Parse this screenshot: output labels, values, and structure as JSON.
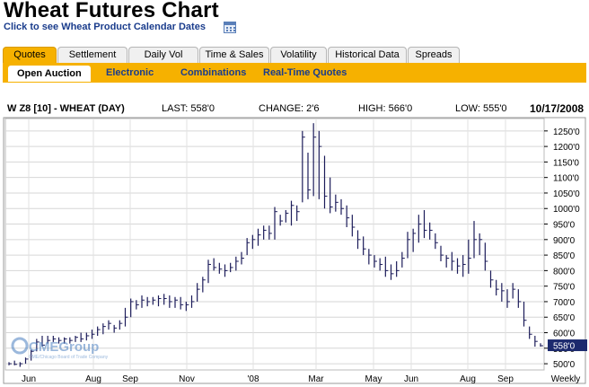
{
  "page": {
    "title": "Wheat Futures Chart",
    "calendar_link": "Click to see Wheat Product Calendar Dates"
  },
  "tabs": [
    "Quotes",
    "Settlement",
    "Daily Vol",
    "Time & Sales",
    "Volatility",
    "Historical Data",
    "Spreads"
  ],
  "active_tab": "Quotes",
  "subtabs": [
    "Open Auction",
    "Electronic",
    "Combinations",
    "Real-Time Quotes"
  ],
  "active_subtab": "Open Auction",
  "info": {
    "symbol": "W Z8 [10] - WHEAT (DAY)",
    "last": "LAST: 558'0",
    "change": "CHANGE: 2'6",
    "high": "HIGH: 566'0",
    "low": "LOW: 555'0",
    "date": "10/17/2008"
  },
  "logo": {
    "text": "CMEGroup",
    "fineprint": "CME/Chicago Board of Trade Company"
  },
  "colors": {
    "orange": "#f6b100",
    "bars": "#1c1c5a",
    "link": "#1a3c8c",
    "last_badge": "#1c2a6e"
  },
  "chart_data": {
    "type": "bar",
    "subtype": "ohlc",
    "y_axis_side": "right",
    "ylim": [
      480,
      1290
    ],
    "yticks": [
      "500'0",
      "550'0",
      "600'0",
      "650'0",
      "700'0",
      "750'0",
      "800'0",
      "850'0",
      "900'0",
      "950'0",
      "1000'0",
      "1050'0",
      "1100'0",
      "1150'0",
      "1200'0",
      "1250'0"
    ],
    "ytick_values": [
      500,
      550,
      600,
      650,
      700,
      750,
      800,
      850,
      900,
      950,
      1000,
      1050,
      1100,
      1150,
      1200,
      1250
    ],
    "last_value_label": "558'0",
    "last_value": 558,
    "xticks": [
      "Jun",
      "Aug",
      "Sep",
      "Nov",
      "'08",
      "Mar",
      "May",
      "Jun",
      "Aug",
      "Sep",
      "Weekly"
    ],
    "grid": true,
    "ohlc": [
      [
        505,
        495,
        500
      ],
      [
        510,
        495,
        498
      ],
      [
        505,
        490,
        500
      ],
      [
        520,
        500,
        515
      ],
      [
        545,
        510,
        540
      ],
      [
        580,
        540,
        570
      ],
      [
        590,
        555,
        560
      ],
      [
        590,
        565,
        575
      ],
      [
        590,
        570,
        580
      ],
      [
        585,
        565,
        575
      ],
      [
        585,
        565,
        580
      ],
      [
        585,
        565,
        575
      ],
      [
        590,
        570,
        585
      ],
      [
        600,
        570,
        580
      ],
      [
        600,
        575,
        590
      ],
      [
        610,
        580,
        595
      ],
      [
        620,
        590,
        610
      ],
      [
        630,
        595,
        620
      ],
      [
        640,
        610,
        630
      ],
      [
        625,
        600,
        615
      ],
      [
        640,
        610,
        630
      ],
      [
        680,
        620,
        650
      ],
      [
        710,
        650,
        700
      ],
      [
        705,
        675,
        690
      ],
      [
        720,
        680,
        705
      ],
      [
        715,
        685,
        700
      ],
      [
        715,
        690,
        705
      ],
      [
        720,
        685,
        710
      ],
      [
        725,
        690,
        710
      ],
      [
        720,
        680,
        700
      ],
      [
        715,
        680,
        705
      ],
      [
        715,
        675,
        690
      ],
      [
        700,
        670,
        690
      ],
      [
        720,
        680,
        700
      ],
      [
        760,
        700,
        740
      ],
      [
        780,
        730,
        770
      ],
      [
        835,
        760,
        820
      ],
      [
        840,
        800,
        810
      ],
      [
        825,
        790,
        805
      ],
      [
        820,
        780,
        800
      ],
      [
        825,
        795,
        810
      ],
      [
        845,
        800,
        830
      ],
      [
        860,
        820,
        840
      ],
      [
        905,
        850,
        890
      ],
      [
        915,
        870,
        900
      ],
      [
        935,
        880,
        915
      ],
      [
        945,
        900,
        930
      ],
      [
        945,
        900,
        920
      ],
      [
        1005,
        900,
        990
      ],
      [
        980,
        945,
        960
      ],
      [
        995,
        955,
        985
      ],
      [
        1025,
        945,
        1010
      ],
      [
        1010,
        960,
        990
      ],
      [
        1250,
        1020,
        1230
      ],
      [
        1180,
        1030,
        1060
      ],
      [
        1275,
        1040,
        1230
      ],
      [
        1250,
        1030,
        1200
      ],
      [
        1170,
        1000,
        1040
      ],
      [
        1100,
        985,
        1005
      ],
      [
        1045,
        990,
        1020
      ],
      [
        1030,
        980,
        1000
      ],
      [
        1010,
        940,
        970
      ],
      [
        980,
        910,
        940
      ],
      [
        930,
        870,
        900
      ],
      [
        910,
        850,
        870
      ],
      [
        870,
        820,
        850
      ],
      [
        850,
        810,
        830
      ],
      [
        840,
        800,
        820
      ],
      [
        845,
        780,
        800
      ],
      [
        820,
        770,
        790
      ],
      [
        830,
        780,
        800
      ],
      [
        860,
        810,
        840
      ],
      [
        925,
        840,
        900
      ],
      [
        935,
        860,
        920
      ],
      [
        980,
        890,
        950
      ],
      [
        995,
        905,
        930
      ],
      [
        955,
        900,
        930
      ],
      [
        920,
        870,
        890
      ],
      [
        880,
        830,
        850
      ],
      [
        850,
        810,
        840
      ],
      [
        860,
        800,
        830
      ],
      [
        840,
        790,
        815
      ],
      [
        850,
        780,
        820
      ],
      [
        900,
        790,
        840
      ],
      [
        960,
        840,
        900
      ],
      [
        920,
        850,
        900
      ],
      [
        890,
        800,
        830
      ],
      [
        800,
        745,
        770
      ],
      [
        770,
        720,
        740
      ],
      [
        760,
        700,
        735
      ],
      [
        740,
        680,
        700
      ],
      [
        760,
        710,
        740
      ],
      [
        740,
        680,
        700
      ],
      [
        700,
        620,
        640
      ],
      [
        620,
        580,
        595
      ],
      [
        590,
        555,
        572
      ],
      [
        566,
        555,
        558
      ]
    ]
  }
}
